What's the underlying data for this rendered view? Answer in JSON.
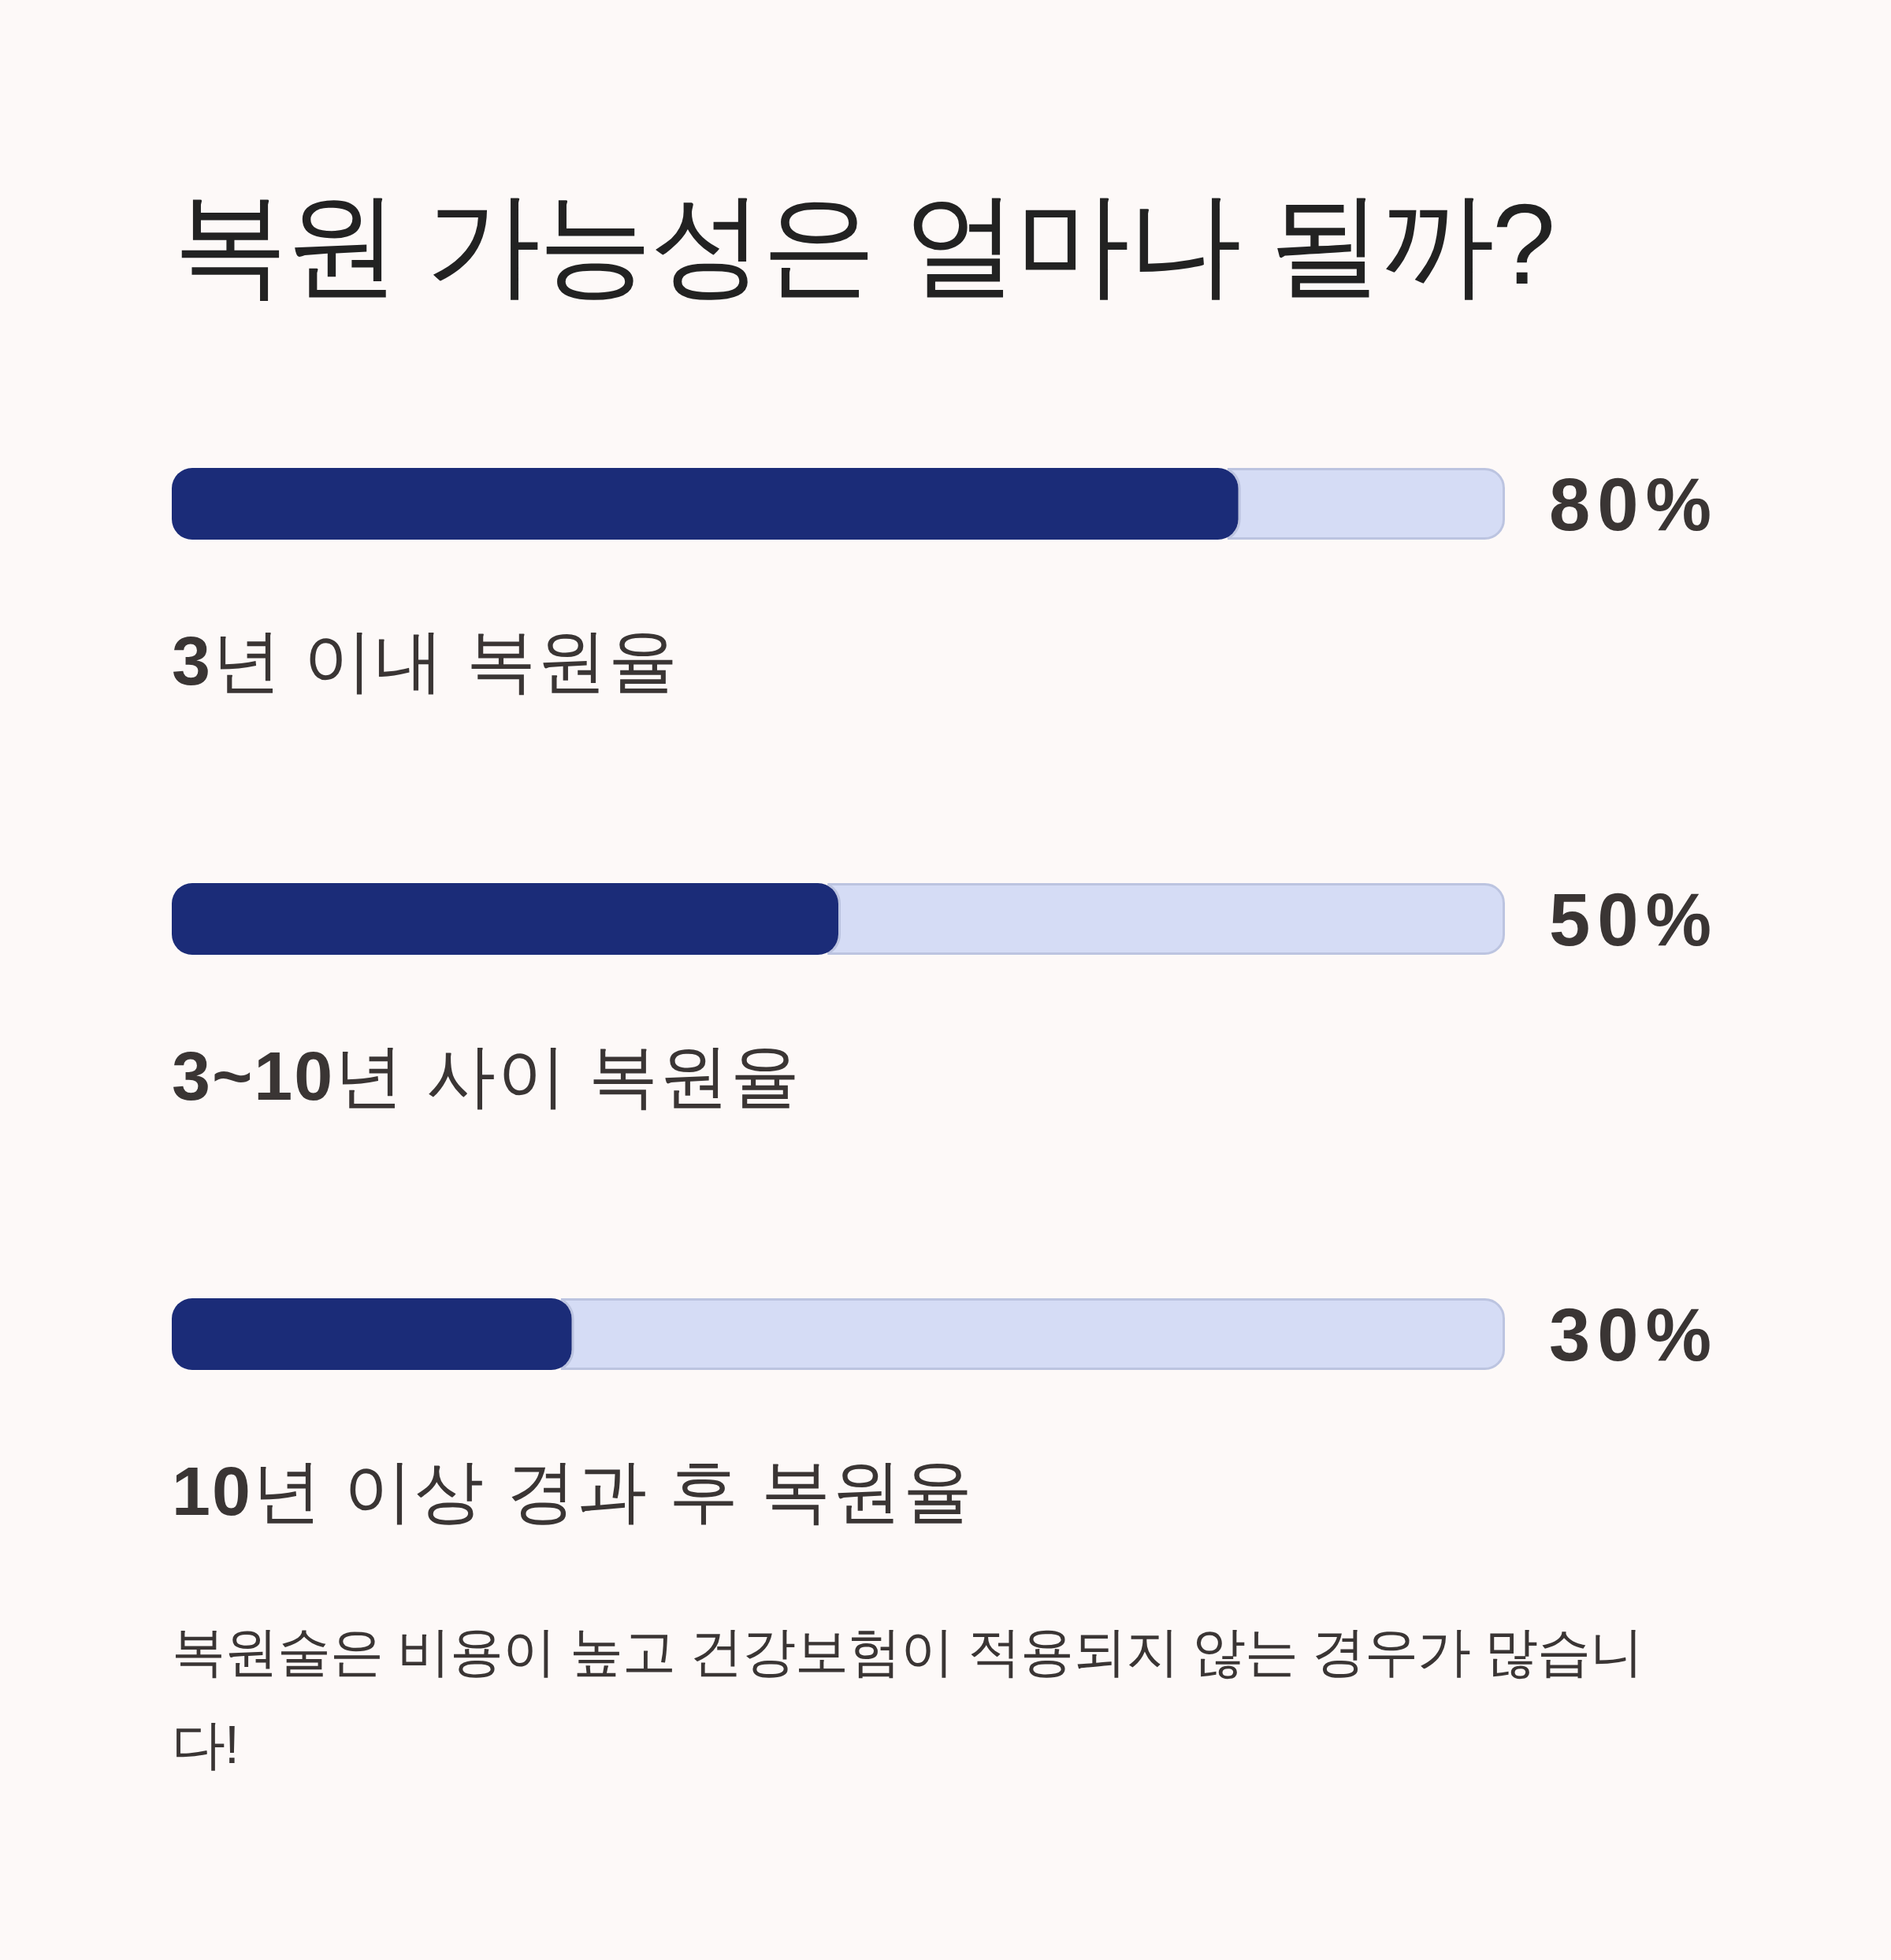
{
  "chart_data": {
    "type": "bar",
    "orientation": "horizontal",
    "title": "복원 가능성은 얼마나 될까?",
    "categories": [
      "**3**년 이내 복원율",
      "**3~10**년 사이 복원율",
      "**10**년 이상 경과 후 복원율"
    ],
    "values": [
      80,
      50,
      30
    ],
    "color": "#1b2c78",
    "xlim": [
      0,
      100
    ],
    "value_labels": [
      "80%",
      "50%",
      "30%"
    ],
    "annotations": [
      "복원술은 비용이 높고 건강보험이 적용되지 않는 경우가 많습니다!"
    ]
  }
}
